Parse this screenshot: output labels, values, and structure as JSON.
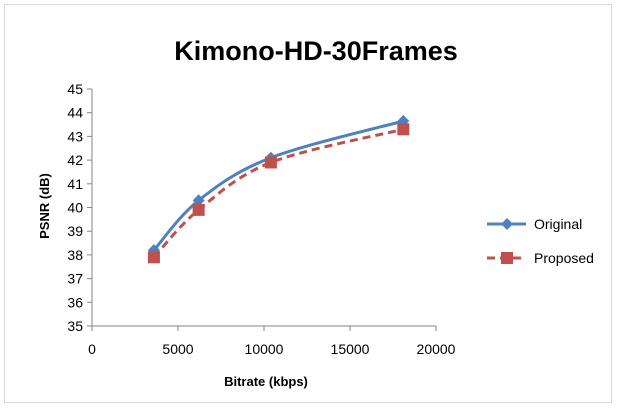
{
  "chart_data": {
    "type": "line",
    "title": "Kimono-HD-30Frames",
    "xlabel": "Bitrate (kbps)",
    "ylabel": "PSNR (dB)",
    "xlim": [
      0,
      20000
    ],
    "ylim": [
      35,
      45
    ],
    "xticks": [
      0,
      5000,
      10000,
      15000,
      20000
    ],
    "yticks": [
      35,
      36,
      37,
      38,
      39,
      40,
      41,
      42,
      43,
      44,
      45
    ],
    "grid": false,
    "legend_position": "right",
    "series": [
      {
        "name": "Original",
        "color": "#4f81bd",
        "marker": "diamond",
        "line_style": "solid",
        "x": [
          3600,
          6200,
          10400,
          18100
        ],
        "y": [
          38.2,
          40.3,
          42.1,
          43.65
        ]
      },
      {
        "name": "Proposed",
        "color": "#c0504d",
        "marker": "square",
        "line_style": "dashed",
        "x": [
          3600,
          6200,
          10400,
          18100
        ],
        "y": [
          37.9,
          39.9,
          41.9,
          43.3
        ]
      }
    ]
  }
}
